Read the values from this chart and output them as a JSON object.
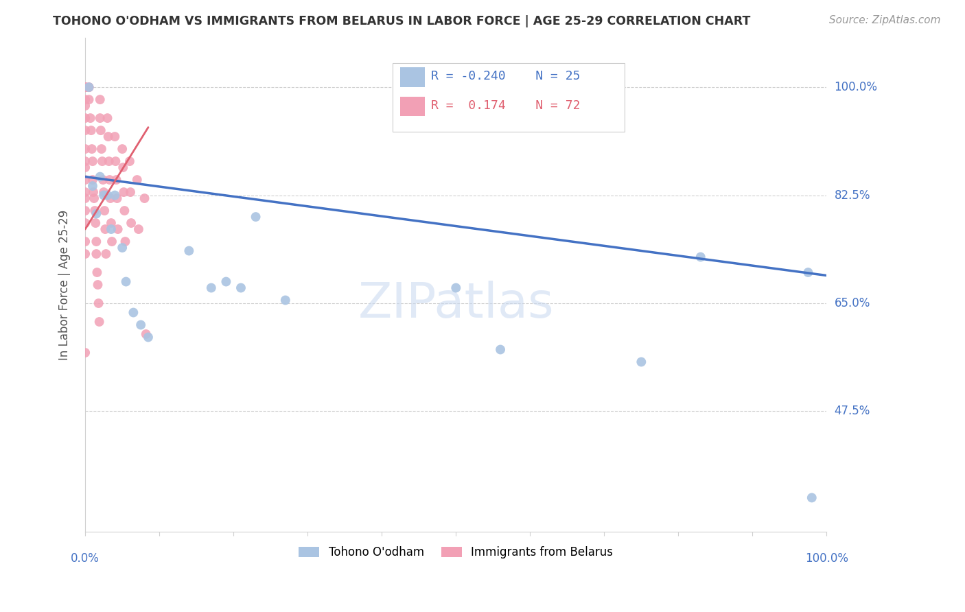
{
  "title": "TOHONO O'ODHAM VS IMMIGRANTS FROM BELARUS IN LABOR FORCE | AGE 25-29 CORRELATION CHART",
  "source": "Source: ZipAtlas.com",
  "ylabel": "In Labor Force | Age 25-29",
  "ytick_labels": [
    "100.0%",
    "82.5%",
    "65.0%",
    "47.5%"
  ],
  "ytick_values": [
    1.0,
    0.825,
    0.65,
    0.475
  ],
  "xlim": [
    0.0,
    1.0
  ],
  "ylim": [
    0.28,
    1.08
  ],
  "legend_blue_r": "-0.240",
  "legend_blue_n": "25",
  "legend_pink_r": " 0.174",
  "legend_pink_n": "72",
  "color_blue": "#aac4e2",
  "color_pink": "#f2a0b5",
  "color_blue_line": "#4472c4",
  "color_pink_line": "#e06070",
  "blue_scatter_x": [
    0.005,
    0.01,
    0.015,
    0.02,
    0.025,
    0.03,
    0.035,
    0.04,
    0.05,
    0.055,
    0.065,
    0.075,
    0.085,
    0.14,
    0.17,
    0.19,
    0.21,
    0.23,
    0.27,
    0.5,
    0.56,
    0.75,
    0.83,
    0.975,
    0.98
  ],
  "blue_scatter_y": [
    1.0,
    0.84,
    0.795,
    0.855,
    0.825,
    0.825,
    0.77,
    0.825,
    0.74,
    0.685,
    0.635,
    0.615,
    0.595,
    0.735,
    0.675,
    0.685,
    0.675,
    0.79,
    0.655,
    0.675,
    0.575,
    0.555,
    0.725,
    0.7,
    0.335
  ],
  "pink_scatter_x": [
    0.0,
    0.0,
    0.0,
    0.0,
    0.0,
    0.0,
    0.0,
    0.0,
    0.0,
    0.0,
    0.0,
    0.0,
    0.0,
    0.0,
    0.0,
    0.0,
    0.0,
    0.0,
    0.0,
    0.0,
    0.005,
    0.005,
    0.005,
    0.007,
    0.008,
    0.009,
    0.01,
    0.01,
    0.011,
    0.012,
    0.013,
    0.014,
    0.015,
    0.015,
    0.016,
    0.017,
    0.018,
    0.019,
    0.02,
    0.02,
    0.021,
    0.022,
    0.023,
    0.024,
    0.025,
    0.026,
    0.027,
    0.028,
    0.03,
    0.031,
    0.032,
    0.033,
    0.034,
    0.035,
    0.036,
    0.04,
    0.041,
    0.042,
    0.043,
    0.044,
    0.05,
    0.051,
    0.052,
    0.053,
    0.054,
    0.06,
    0.061,
    0.062,
    0.07,
    0.072,
    0.08,
    0.082
  ],
  "pink_scatter_y": [
    1.0,
    1.0,
    1.0,
    1.0,
    1.0,
    0.98,
    0.97,
    0.95,
    0.93,
    0.9,
    0.88,
    0.87,
    0.85,
    0.83,
    0.82,
    0.8,
    0.78,
    0.75,
    0.73,
    0.57,
    1.0,
    1.0,
    0.98,
    0.95,
    0.93,
    0.9,
    0.88,
    0.85,
    0.83,
    0.82,
    0.8,
    0.78,
    0.75,
    0.73,
    0.7,
    0.68,
    0.65,
    0.62,
    0.98,
    0.95,
    0.93,
    0.9,
    0.88,
    0.85,
    0.83,
    0.8,
    0.77,
    0.73,
    0.95,
    0.92,
    0.88,
    0.85,
    0.82,
    0.78,
    0.75,
    0.92,
    0.88,
    0.85,
    0.82,
    0.77,
    0.9,
    0.87,
    0.83,
    0.8,
    0.75,
    0.88,
    0.83,
    0.78,
    0.85,
    0.77,
    0.82,
    0.6
  ],
  "blue_line_x0": 0.0,
  "blue_line_x1": 1.0,
  "blue_line_y0": 0.855,
  "blue_line_y1": 0.695,
  "pink_line_x0": 0.0,
  "pink_line_x1": 0.085,
  "pink_line_y0": 0.77,
  "pink_line_y1": 0.935,
  "watermark_text": "ZIPatlas",
  "watermark_color": "#c8d8f0",
  "watermark_alpha": 0.55,
  "grid_color": "#d0d0d0",
  "spine_color": "#d0d0d0",
  "tick_label_color": "#4472c4",
  "title_color": "#333333",
  "source_color": "#999999",
  "ylabel_color": "#555555",
  "legend_box_edge_color": "#cccccc",
  "bottom_legend_label_blue": "Tohono O'odham",
  "bottom_legend_label_pink": "Immigrants from Belarus"
}
